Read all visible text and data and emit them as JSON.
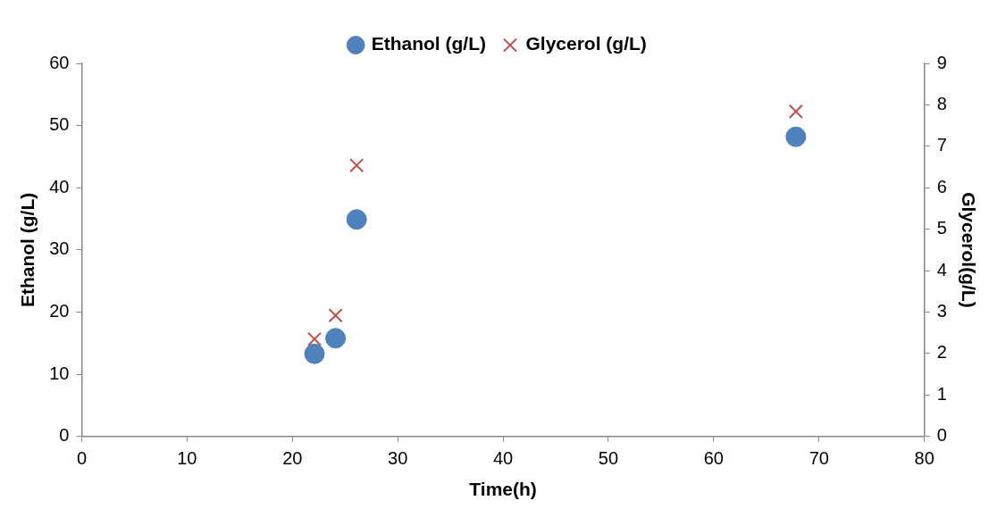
{
  "chart_data": {
    "type": "scatter",
    "xlabel": "Time(h)",
    "ylabel": "Ethanol (g/L)",
    "y2label": "Glycerol(g/L)",
    "xlim": [
      0,
      80
    ],
    "xticks": [
      0,
      10,
      20,
      30,
      40,
      50,
      60,
      70,
      80
    ],
    "ylim": [
      0,
      60
    ],
    "yticks": [
      0,
      10,
      20,
      30,
      40,
      50,
      60
    ],
    "y2lim": [
      0,
      9
    ],
    "y2ticks": [
      0,
      1,
      2,
      3,
      4,
      5,
      6,
      7,
      8,
      9
    ],
    "grid": false,
    "legend": "top",
    "series": [
      {
        "name": "Ethanol (g/L)",
        "color": "#4f81bd",
        "marker": "circle",
        "x": [
          22.1,
          24.1,
          26.1,
          67.8
        ],
        "values": [
          13.3,
          15.8,
          34.9,
          48.2
        ]
      },
      {
        "name": "Glycerol (g/L)",
        "color": "#c0504d",
        "marker": "cross",
        "axis": "y2",
        "x": [
          22.1,
          24.1,
          26.1,
          67.8
        ],
        "values": [
          2.35,
          2.92,
          6.54,
          7.84
        ]
      }
    ]
  }
}
